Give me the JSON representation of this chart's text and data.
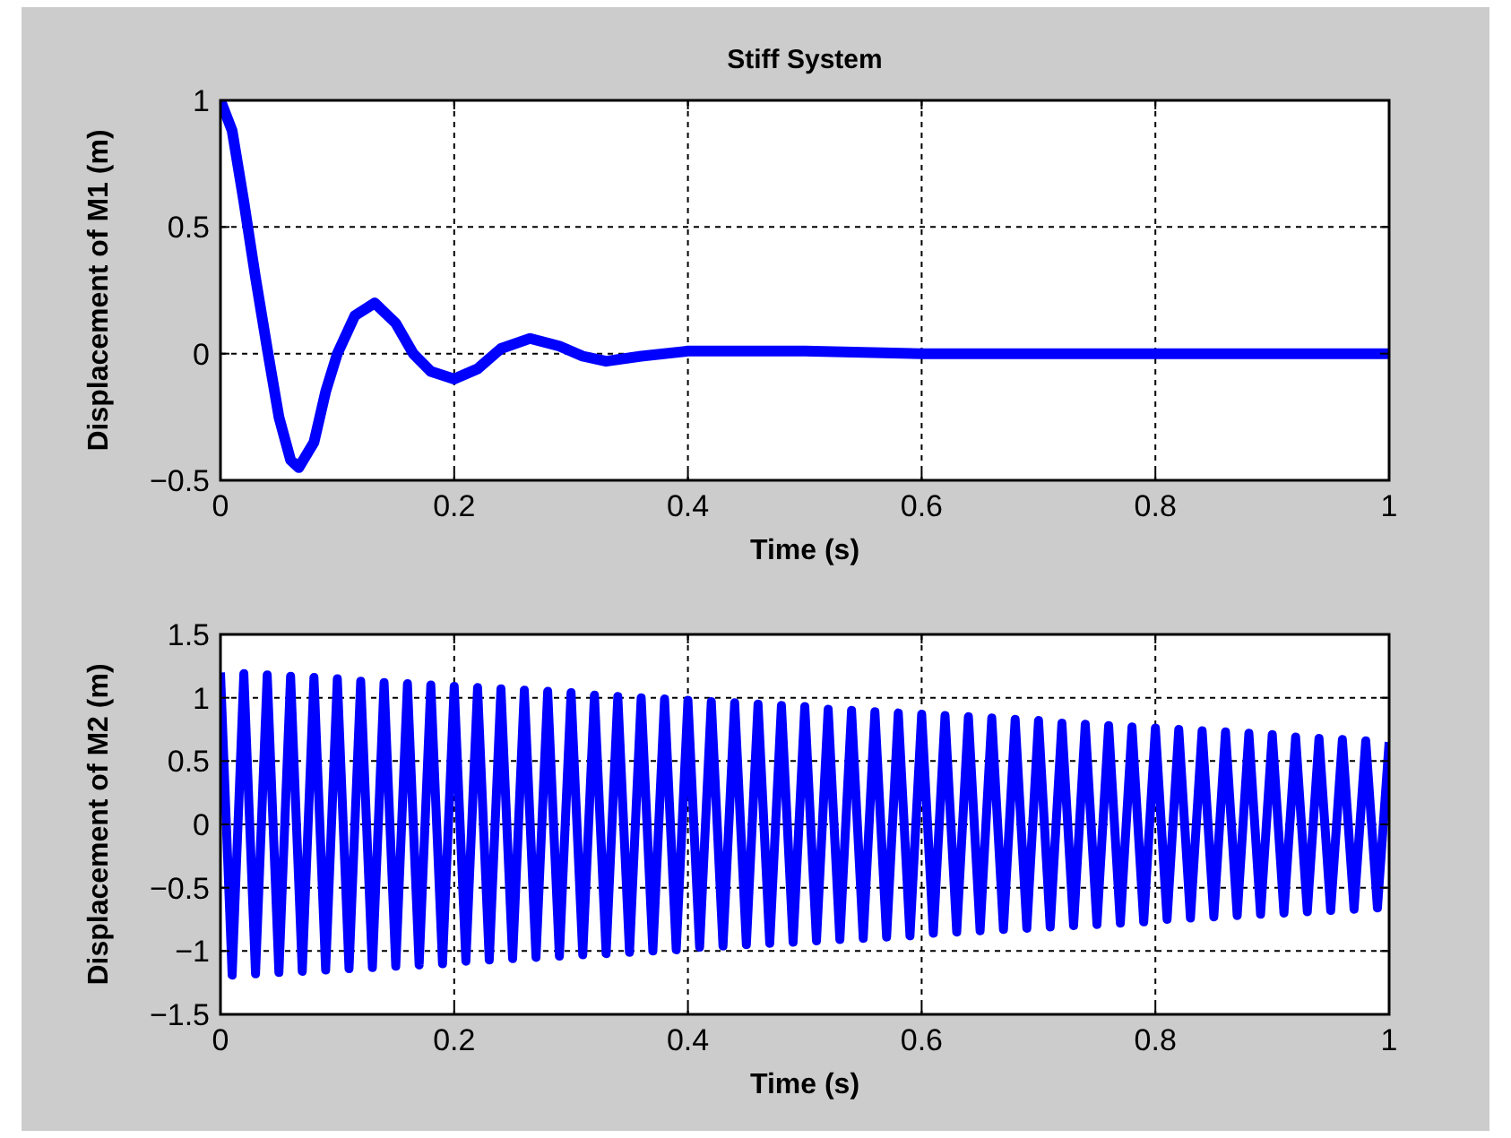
{
  "chart_data": [
    {
      "type": "line",
      "title": "Stiff System",
      "xlabel": "Time (s)",
      "ylabel": "Displacement of M1 (m)",
      "xlim": [
        0,
        1
      ],
      "ylim": [
        -0.5,
        1
      ],
      "xticks": [
        0,
        0.2,
        0.4,
        0.6,
        0.8,
        1
      ],
      "yticks": [
        -0.5,
        0,
        0.5,
        1
      ],
      "grid": true,
      "series": [
        {
          "color": "#0000ff",
          "x": [
            0,
            0.01,
            0.02,
            0.03,
            0.04,
            0.05,
            0.06,
            0.067,
            0.08,
            0.09,
            0.1,
            0.115,
            0.132,
            0.15,
            0.165,
            0.18,
            0.2,
            0.22,
            0.24,
            0.265,
            0.29,
            0.31,
            0.33,
            0.36,
            0.4,
            0.45,
            0.5,
            0.6,
            0.7,
            0.8,
            0.9,
            1
          ],
          "values": [
            1,
            0.88,
            0.6,
            0.3,
            0.02,
            -0.25,
            -0.42,
            -0.45,
            -0.35,
            -0.15,
            0.0,
            0.15,
            0.2,
            0.12,
            0.0,
            -0.07,
            -0.1,
            -0.06,
            0.02,
            0.06,
            0.03,
            -0.01,
            -0.03,
            -0.01,
            0.01,
            0.01,
            0.01,
            0.0,
            0.0,
            0.0,
            0.0,
            0.0
          ]
        }
      ]
    },
    {
      "type": "line",
      "xlabel": "Time (s)",
      "ylabel": "Displacement of M2 (m)",
      "xlim": [
        0,
        1
      ],
      "ylim": [
        -1.5,
        1.5
      ],
      "xticks": [
        0,
        0.2,
        0.4,
        0.6,
        0.8,
        1
      ],
      "yticks": [
        -1.5,
        -1,
        -0.5,
        0,
        0.5,
        1,
        1.5
      ],
      "grid": true,
      "series": [
        {
          "color": "#0000ff",
          "x": [
            0,
            0.01,
            0.02,
            0.03,
            0.04,
            0.05,
            0.06,
            0.07,
            0.08,
            0.09,
            0.1,
            0.11,
            0.12,
            0.13,
            0.14,
            0.15,
            0.16,
            0.17,
            0.18,
            0.19,
            0.2,
            0.21,
            0.22,
            0.23,
            0.24,
            0.25,
            0.26,
            0.27,
            0.28,
            0.29,
            0.3,
            0.31,
            0.32,
            0.33,
            0.34,
            0.35,
            0.36,
            0.37,
            0.38,
            0.39,
            0.4,
            0.41,
            0.42,
            0.43,
            0.44,
            0.45,
            0.46,
            0.47,
            0.48,
            0.49,
            0.5,
            0.51,
            0.52,
            0.53,
            0.54,
            0.55,
            0.56,
            0.57,
            0.58,
            0.59,
            0.6,
            0.61,
            0.62,
            0.63,
            0.64,
            0.65,
            0.66,
            0.67,
            0.68,
            0.69,
            0.7,
            0.71,
            0.72,
            0.73,
            0.74,
            0.75,
            0.76,
            0.77,
            0.78,
            0.79,
            0.8,
            0.81,
            0.82,
            0.83,
            0.84,
            0.85,
            0.86,
            0.87,
            0.88,
            0.89,
            0.9,
            0.91,
            0.92,
            0.93,
            0.94,
            0.95,
            0.96,
            0.97,
            0.98,
            0.99,
            1
          ],
          "values": [
            1.2,
            -1.19,
            1.19,
            -1.18,
            1.18,
            -1.17,
            1.17,
            -1.16,
            1.16,
            -1.15,
            1.15,
            -1.14,
            1.13,
            -1.13,
            1.12,
            -1.12,
            1.11,
            -1.11,
            1.1,
            -1.1,
            1.09,
            -1.08,
            1.08,
            -1.07,
            1.07,
            -1.06,
            1.06,
            -1.05,
            1.05,
            -1.04,
            1.04,
            -1.03,
            1.02,
            -1.02,
            1.01,
            -1.01,
            1.0,
            -1.0,
            0.99,
            -0.99,
            0.98,
            -0.97,
            0.97,
            -0.96,
            0.96,
            -0.95,
            0.95,
            -0.94,
            0.94,
            -0.93,
            0.93,
            -0.92,
            0.91,
            -0.91,
            0.9,
            -0.9,
            0.89,
            -0.89,
            0.88,
            -0.88,
            0.87,
            -0.86,
            0.86,
            -0.85,
            0.85,
            -0.84,
            0.84,
            -0.83,
            0.83,
            -0.82,
            0.82,
            -0.81,
            0.8,
            -0.8,
            0.79,
            -0.79,
            0.78,
            -0.78,
            0.77,
            -0.77,
            0.76,
            -0.75,
            0.75,
            -0.74,
            0.74,
            -0.73,
            0.73,
            -0.72,
            0.72,
            -0.71,
            0.71,
            -0.7,
            0.69,
            -0.69,
            0.68,
            -0.68,
            0.67,
            -0.67,
            0.66,
            -0.66,
            0.65
          ]
        }
      ]
    }
  ]
}
